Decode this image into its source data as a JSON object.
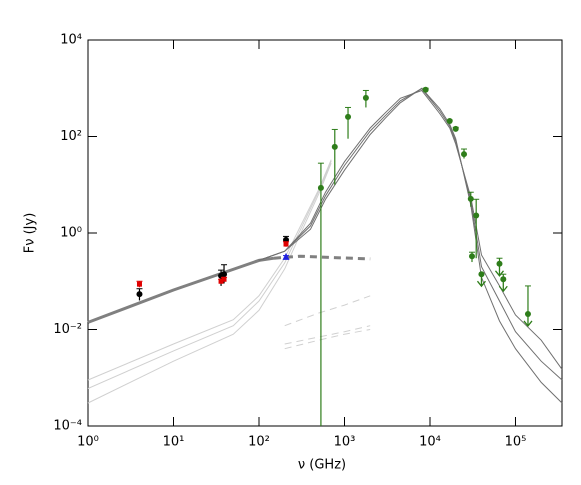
{
  "chart_data": {
    "type": "scatter",
    "x_label": "ν (GHz)",
    "y_label": "Fν (Jy)",
    "log_x": true,
    "log_y": true,
    "xlim": [
      1,
      350000
    ],
    "ylim": [
      0.0001,
      10000
    ],
    "xticks": [
      {
        "value": 1,
        "label": "10⁰"
      },
      {
        "value": 10,
        "label": "10¹"
      },
      {
        "value": 100,
        "label": "10²"
      },
      {
        "value": 1000,
        "label": "10³"
      },
      {
        "value": 10000,
        "label": "10⁴"
      },
      {
        "value": 100000,
        "label": "10⁵"
      }
    ],
    "yticks": [
      {
        "value": 0.0001,
        "label": "10⁻⁴"
      },
      {
        "value": 0.01,
        "label": "10⁻²"
      },
      {
        "value": 1,
        "label": "10⁰"
      },
      {
        "value": 100,
        "label": "10²"
      },
      {
        "value": 10000,
        "label": "10⁴"
      }
    ],
    "curves": [
      {
        "color": "#d0d0d0",
        "width": 1,
        "dash": false,
        "x": [
          1,
          10,
          50,
          100,
          200,
          300,
          500,
          700
        ],
        "values": [
          0.0006,
          0.0036,
          0.012,
          0.039,
          0.24,
          1.1,
          7.4,
          31
        ]
      },
      {
        "color": "#d0d0d0",
        "width": 1,
        "dash": false,
        "x": [
          1,
          10,
          50,
          100,
          200,
          300,
          500,
          700
        ],
        "values": [
          0.0003,
          0.0022,
          0.008,
          0.025,
          0.18,
          0.9,
          6.5,
          28
        ]
      },
      {
        "color": "#d0d0d0",
        "width": 1,
        "dash": false,
        "x": [
          1,
          10,
          50,
          100,
          200,
          300,
          500,
          700
        ],
        "values": [
          0.0009,
          0.005,
          0.016,
          0.05,
          0.3,
          1.3,
          8,
          33
        ]
      },
      {
        "color": "#d0d0d0",
        "width": 1,
        "dash": true,
        "x": [
          200,
          500,
          1000,
          2000
        ],
        "values": [
          0.012,
          0.022,
          0.032,
          0.05
        ]
      },
      {
        "color": "#d0d0d0",
        "width": 1,
        "dash": true,
        "x": [
          200,
          500,
          1000,
          2000
        ],
        "values": [
          0.005,
          0.007,
          0.009,
          0.012
        ]
      },
      {
        "color": "#d0d0d0",
        "width": 1,
        "dash": true,
        "x": [
          200,
          500,
          1000,
          2000
        ],
        "values": [
          0.004,
          0.006,
          0.008,
          0.01
        ]
      },
      {
        "color": "#808080",
        "width": 3,
        "dash": false,
        "x": [
          1,
          10,
          100,
          150
        ],
        "values": [
          0.014,
          0.066,
          0.27,
          0.3
        ]
      },
      {
        "color": "#808080",
        "width": 3,
        "dash": true,
        "x": [
          150,
          300,
          700,
          2000
        ],
        "values": [
          0.3,
          0.33,
          0.31,
          0.29
        ]
      },
      {
        "color": "#707070",
        "width": 1,
        "dash": false,
        "x": [
          100,
          200,
          400,
          600,
          1000,
          2000,
          3000,
          4500,
          8000,
          13000,
          17000,
          20000,
          30000,
          40000,
          65000,
          100000,
          200000,
          350000
        ],
        "values": [
          0.27,
          0.42,
          1.4,
          5.9,
          25,
          130,
          270,
          550,
          980,
          340,
          165,
          80,
          4.6,
          0.2,
          0.039,
          0.009,
          0.0022,
          0.0009
        ]
      },
      {
        "color": "#707070",
        "width": 1,
        "dash": false,
        "x": [
          100,
          200,
          400,
          600,
          1000,
          2000,
          3000,
          4500,
          8000,
          13000,
          17000,
          20000,
          30000,
          40000,
          65000,
          100000,
          200000,
          350000
        ],
        "values": [
          0.27,
          0.42,
          1.6,
          7,
          30,
          150,
          310,
          620,
          900,
          300,
          150,
          70,
          5.5,
          0.35,
          0.08,
          0.02,
          0.006,
          0.0015
        ]
      },
      {
        "color": "#707070",
        "width": 1,
        "dash": false,
        "x": [
          100,
          200,
          400,
          600,
          1000,
          2000,
          3000,
          4500,
          8000,
          13000,
          17000,
          20000,
          30000,
          40000,
          65000,
          100000,
          200000,
          350000
        ],
        "values": [
          0.27,
          0.42,
          1.2,
          5,
          20,
          110,
          240,
          500,
          1000,
          380,
          180,
          90,
          3.8,
          0.12,
          0.015,
          0.004,
          0.0008,
          0.0003
        ]
      }
    ],
    "points": [
      {
        "color": "#000000",
        "marker": "circle",
        "x": [
          4,
          36,
          39,
          207
        ],
        "values": [
          0.054,
          0.13,
          0.14,
          0.72
        ],
        "ylow": [
          0.04,
          0.08,
          0.09,
          0.6
        ],
        "yhigh": [
          0.07,
          0.17,
          0.22,
          0.85
        ],
        "upper_limit": [
          false,
          false,
          false,
          false
        ]
      },
      {
        "color": "#e00000",
        "marker": "square",
        "x": [
          4,
          36,
          39,
          207
        ],
        "values": [
          0.087,
          0.1,
          0.11,
          0.59
        ],
        "ylow": [
          0.075,
          0.09,
          0.1,
          0.52
        ],
        "yhigh": [
          0.1,
          0.11,
          0.12,
          0.66
        ],
        "upper_limit": [
          false,
          false,
          false,
          false
        ]
      },
      {
        "color": "#2020e0",
        "marker": "triangle",
        "x": [
          207
        ],
        "values": [
          0.32
        ],
        "ylow": [
          0.3
        ],
        "yhigh": [
          0.34
        ],
        "upper_limit": [
          false
        ]
      },
      {
        "color": "#2e7d1a",
        "marker": "circle",
        "x": [
          530,
          770,
          1100,
          1780,
          8900,
          17000,
          20000,
          25000,
          30000,
          31000,
          34700,
          40000,
          65000,
          72000,
          140000
        ],
        "values": [
          8.6,
          61,
          255,
          630,
          930,
          210,
          144,
          43,
          5.1,
          0.33,
          2.3,
          0.14,
          0.23,
          0.11,
          0.021
        ],
        "ylow": [
          0.0001,
          10,
          90,
          400,
          850,
          200,
          130,
          35,
          3.5,
          0.25,
          0.3,
          0.14,
          0.23,
          0.11,
          0.021
        ],
        "yhigh": [
          28,
          140,
          400,
          900,
          1000,
          220,
          155,
          55,
          7,
          0.4,
          5,
          0.14,
          0.3,
          0.14,
          0.08
        ],
        "upper_limit": [
          false,
          false,
          false,
          false,
          false,
          false,
          false,
          false,
          false,
          false,
          false,
          true,
          true,
          true,
          true
        ]
      }
    ]
  }
}
